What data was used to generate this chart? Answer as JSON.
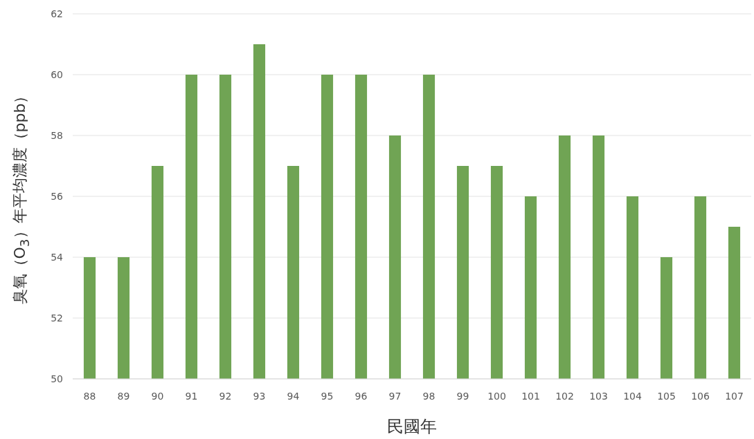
{
  "chart_data": {
    "type": "bar",
    "xlabel": "民國年",
    "ylabel": "臭氧（O$_{3}$）年平均濃度（ppb）",
    "categories": [
      "88",
      "89",
      "90",
      "91",
      "92",
      "93",
      "94",
      "95",
      "96",
      "97",
      "98",
      "99",
      "100",
      "101",
      "102",
      "103",
      "104",
      "105",
      "106",
      "107"
    ],
    "values": [
      54,
      54,
      57,
      60,
      60,
      61,
      57,
      60,
      60,
      58,
      60,
      57,
      57,
      56,
      58,
      58,
      56,
      54,
      56,
      55
    ],
    "color": "#70a454",
    "ylim": [
      50,
      62
    ],
    "yticks": [
      50,
      52,
      54,
      56,
      58,
      60,
      62
    ],
    "grid": "y"
  }
}
